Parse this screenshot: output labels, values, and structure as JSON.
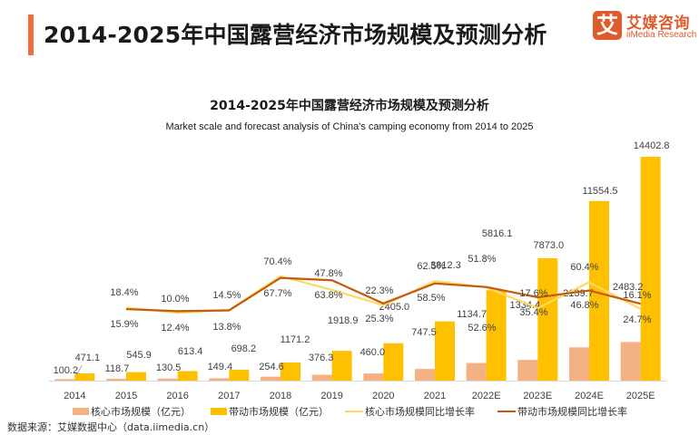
{
  "header": {
    "title": "2014-2025年中国露营经济市场规模及预测分析"
  },
  "logo": {
    "mark": "艾",
    "cn": "艾媒咨询",
    "en": "iiMedia Research"
  },
  "colors": {
    "accent": "#f26b3a",
    "core_bar": "#f4b183",
    "drive_bar": "#ffc000",
    "core_line": "#ffd966",
    "drive_line": "#c55a11"
  },
  "chart_data": {
    "type": "bar",
    "title": "2014-2025年中国露营经济市场规模及预测分析",
    "subtitle": "Market scale and forecast analysis of China's camping economy from 2014 to 2025",
    "categories": [
      "2014",
      "2015",
      "2016",
      "2017",
      "2018",
      "2019",
      "2020",
      "2021",
      "2022E",
      "2023E",
      "2024E",
      "2025E"
    ],
    "series": [
      {
        "name": "核心市场规模（亿元）",
        "type": "bar",
        "values": [
          100.2,
          118.7,
          130.5,
          149.4,
          254.6,
          376.3,
          460.0,
          747.5,
          1134.7,
          1334.4,
          2139.7,
          2483.2
        ],
        "labels": [
          "100.2",
          "118.7",
          "130.5",
          "149.4",
          "254.6",
          "376.3",
          "460.0",
          "747.5",
          "1134.7",
          "1334.4",
          "2139.7",
          "2483.2"
        ]
      },
      {
        "name": "带动市场规模（亿元）",
        "type": "bar",
        "values": [
          471.1,
          545.9,
          613.4,
          698.2,
          1171.2,
          1918.9,
          2405.0,
          3812.3,
          5816.1,
          7873.0,
          11554.5,
          14402.8
        ],
        "labels": [
          "471.1",
          "545.9",
          "613.4",
          "698.2",
          "1171.2",
          "1918.9",
          "2405.0",
          "3812.3",
          "5816.1",
          "7873.0",
          "11554.5",
          "14402.8"
        ]
      },
      {
        "name": "核心市场规模同比增长率",
        "type": "line",
        "values": [
          null,
          18.4,
          10.0,
          14.5,
          70.4,
          47.8,
          22.3,
          62.5,
          51.8,
          17.6,
          60.4,
          16.1
        ],
        "labels": [
          "",
          "18.4%",
          "10.0%",
          "14.5%",
          "70.4%",
          "47.8%",
          "22.3%",
          "62.5%",
          "51.8%",
          "17.6%",
          "60.4%",
          "16.1%"
        ]
      },
      {
        "name": "带动市场规模同比增长率",
        "type": "line",
        "values": [
          null,
          15.9,
          12.4,
          13.8,
          67.7,
          63.8,
          25.3,
          58.5,
          52.6,
          35.4,
          46.8,
          24.7
        ],
        "labels": [
          "",
          "15.9%",
          "12.4%",
          "13.8%",
          "67.7%",
          "63.8%",
          "25.3%",
          "58.5%",
          "52.6%",
          "35.4%",
          "46.8%",
          "24.7%"
        ]
      }
    ],
    "xlabel": "",
    "ylabel": "",
    "ylim": [
      0,
      15500
    ],
    "grid": false,
    "legend": "bottom"
  },
  "legend": {
    "items": [
      "核心市场规模（亿元）",
      "带动市场规模（亿元）",
      "核心市场规模同比增长率",
      "带动市场规模同比增长率"
    ]
  },
  "source": "数据来源：艾媒数据中心（data.iimedia.cn）"
}
